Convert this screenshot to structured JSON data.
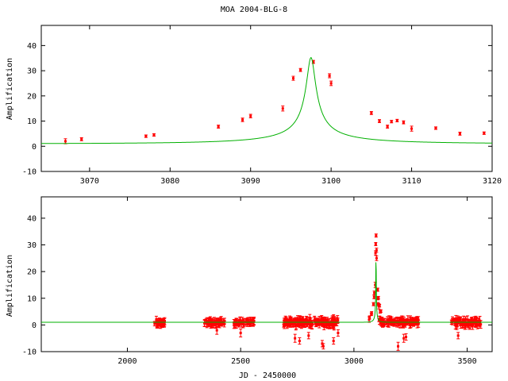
{
  "title": "MOA 2004-BLG-8",
  "chart_data": [
    {
      "type": "scatter",
      "title": "MOA 2004-BLG-8",
      "xlabel": "",
      "ylabel": "Amplification",
      "xlim": [
        3064,
        3120
      ],
      "ylim": [
        -10,
        48
      ],
      "xticks": [
        3070,
        3080,
        3090,
        3100,
        3110,
        3120
      ],
      "yticks": [
        -10,
        0,
        10,
        20,
        30,
        40
      ],
      "grid": false,
      "colors": {
        "model": "#00b000",
        "data": "#ff0000"
      },
      "model_params": {
        "t0": 3097.5,
        "u0": 0.0284,
        "tE": 20.0
      },
      "points": [
        {
          "x": 3067.0,
          "y": 2.0,
          "err": 1.0
        },
        {
          "x": 3069.0,
          "y": 2.8,
          "err": 0.6
        },
        {
          "x": 3077.0,
          "y": 4.0,
          "err": 0.5
        },
        {
          "x": 3078.0,
          "y": 4.5,
          "err": 0.5
        },
        {
          "x": 3086.0,
          "y": 7.8,
          "err": 0.6
        },
        {
          "x": 3089.0,
          "y": 10.5,
          "err": 0.7
        },
        {
          "x": 3090.0,
          "y": 12.0,
          "err": 0.7
        },
        {
          "x": 3094.0,
          "y": 15.0,
          "err": 1.0
        },
        {
          "x": 3095.3,
          "y": 27.0,
          "err": 0.8
        },
        {
          "x": 3096.2,
          "y": 30.3,
          "err": 0.6
        },
        {
          "x": 3097.8,
          "y": 33.5,
          "err": 0.6
        },
        {
          "x": 3099.8,
          "y": 28.0,
          "err": 0.8
        },
        {
          "x": 3100.0,
          "y": 25.0,
          "err": 0.9
        },
        {
          "x": 3105.0,
          "y": 13.2,
          "err": 0.6
        },
        {
          "x": 3106.0,
          "y": 10.0,
          "err": 0.6
        },
        {
          "x": 3107.0,
          "y": 7.8,
          "err": 0.6
        },
        {
          "x": 3107.5,
          "y": 9.8,
          "err": 0.5
        },
        {
          "x": 3108.2,
          "y": 10.2,
          "err": 0.5
        },
        {
          "x": 3109.0,
          "y": 9.5,
          "err": 0.6
        },
        {
          "x": 3110.0,
          "y": 7.0,
          "err": 1.0
        },
        {
          "x": 3113.0,
          "y": 7.2,
          "err": 0.5
        },
        {
          "x": 3116.0,
          "y": 5.0,
          "err": 0.6
        },
        {
          "x": 3119.0,
          "y": 5.2,
          "err": 0.5
        }
      ]
    },
    {
      "type": "scatter",
      "title": "",
      "xlabel": "JD - 2450000",
      "ylabel": "Amplification",
      "xlim": [
        1620,
        3610
      ],
      "ylim": [
        -10,
        48
      ],
      "xticks": [
        2000,
        2500,
        3000,
        3500
      ],
      "yticks": [
        -10,
        0,
        10,
        20,
        30,
        40
      ],
      "grid": false,
      "colors": {
        "model": "#00b000",
        "data": "#ff0000"
      },
      "model_params": {
        "t0": 3097.5,
        "u0": 0.0284,
        "tE": 20.0
      },
      "seasons": [
        {
          "x_start": 2120,
          "x_end": 2165,
          "n": 30,
          "scatter": 1.2
        },
        {
          "x_start": 2340,
          "x_end": 2430,
          "n": 50,
          "scatter": 0.8
        },
        {
          "x_start": 2470,
          "x_end": 2560,
          "n": 50,
          "scatter": 0.8
        },
        {
          "x_start": 2690,
          "x_end": 2930,
          "n": 150,
          "scatter": 1.3
        },
        {
          "x_start": 3110,
          "x_end": 3290,
          "n": 110,
          "scatter": 1.0
        },
        {
          "x_start": 3430,
          "x_end": 3560,
          "n": 80,
          "scatter": 1.2
        }
      ],
      "outliers": [
        {
          "x": 2395,
          "y": -2.0,
          "err": 1.5
        },
        {
          "x": 2500,
          "y": -3.0,
          "err": 1.5
        },
        {
          "x": 2740,
          "y": -5.0,
          "err": 1.5
        },
        {
          "x": 2760,
          "y": -6.0,
          "err": 1.2
        },
        {
          "x": 2800,
          "y": -4.0,
          "err": 1.2
        },
        {
          "x": 2860,
          "y": -7.0,
          "err": 1.2
        },
        {
          "x": 2865,
          "y": -8.0,
          "err": 1.0
        },
        {
          "x": 2910,
          "y": -6.0,
          "err": 1.2
        },
        {
          "x": 2930,
          "y": -3.0,
          "err": 1.2
        },
        {
          "x": 3195,
          "y": -8.0,
          "err": 1.5
        },
        {
          "x": 3220,
          "y": -5.0,
          "err": 1.5
        },
        {
          "x": 3230,
          "y": -4.5,
          "err": 1.2
        },
        {
          "x": 3460,
          "y": -4.0,
          "err": 1.2
        }
      ],
      "points": [
        {
          "x": 3067.0,
          "y": 2.0,
          "err": 1.0
        },
        {
          "x": 3069.0,
          "y": 2.8,
          "err": 0.6
        },
        {
          "x": 3077.0,
          "y": 4.0,
          "err": 0.5
        },
        {
          "x": 3078.0,
          "y": 4.5,
          "err": 0.5
        },
        {
          "x": 3086.0,
          "y": 7.8,
          "err": 0.6
        },
        {
          "x": 3089.0,
          "y": 10.5,
          "err": 0.7
        },
        {
          "x": 3090.0,
          "y": 12.0,
          "err": 0.7
        },
        {
          "x": 3094.0,
          "y": 15.0,
          "err": 1.0
        },
        {
          "x": 3095.3,
          "y": 27.0,
          "err": 0.8
        },
        {
          "x": 3096.2,
          "y": 30.3,
          "err": 0.6
        },
        {
          "x": 3097.8,
          "y": 33.5,
          "err": 0.6
        },
        {
          "x": 3099.8,
          "y": 28.0,
          "err": 0.8
        },
        {
          "x": 3100.0,
          "y": 25.0,
          "err": 0.9
        },
        {
          "x": 3105.0,
          "y": 13.2,
          "err": 0.6
        },
        {
          "x": 3106.0,
          "y": 10.0,
          "err": 0.6
        },
        {
          "x": 3107.0,
          "y": 7.8,
          "err": 0.6
        },
        {
          "x": 3108.2,
          "y": 10.2,
          "err": 0.5
        },
        {
          "x": 3110.0,
          "y": 7.0,
          "err": 1.0
        },
        {
          "x": 3113.0,
          "y": 7.2,
          "err": 0.5
        },
        {
          "x": 3116.0,
          "y": 5.0,
          "err": 0.6
        },
        {
          "x": 3119.0,
          "y": 5.2,
          "err": 0.5
        }
      ]
    }
  ]
}
